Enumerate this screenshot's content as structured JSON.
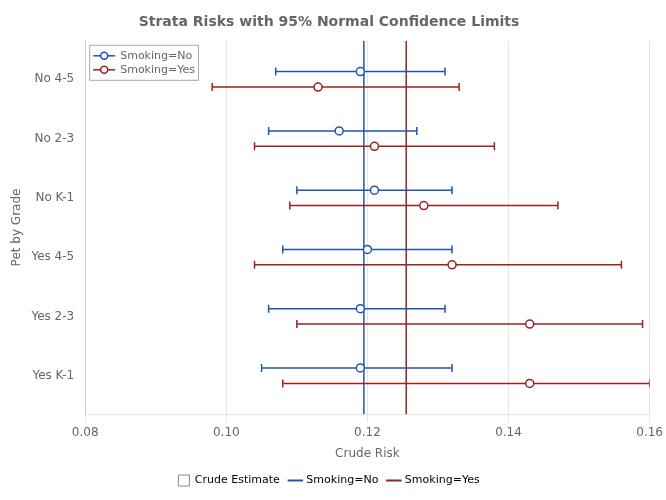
{
  "chart_data": {
    "type": "errorbar",
    "orientation": "horizontal",
    "title": "Strata Risks with 95% Normal Confidence Limits",
    "xlabel": "Crude Risk",
    "ylabel": "Pet by Grade",
    "categories": [
      "No 4-5",
      "No 2-3",
      "No K-1",
      "Yes 4-5",
      "Yes 2-3",
      "Yes K-1"
    ],
    "series": [
      {
        "name": "Smoking=No",
        "color": "#2255aa",
        "marker": "circle",
        "values": [
          0.119,
          0.116,
          0.121,
          0.12,
          0.119,
          0.119
        ],
        "lower": [
          0.107,
          0.106,
          0.11,
          0.108,
          0.106,
          0.105
        ],
        "upper": [
          0.131,
          0.127,
          0.132,
          0.132,
          0.131,
          0.132
        ]
      },
      {
        "name": "Smoking=Yes",
        "color": "#992222",
        "marker": "circle",
        "values": [
          0.113,
          0.121,
          0.128,
          0.132,
          0.143,
          0.143
        ],
        "lower": [
          0.098,
          0.104,
          0.109,
          0.104,
          0.11,
          0.108
        ],
        "upper": [
          0.133,
          0.138,
          0.147,
          0.156,
          0.159,
          0.16
        ]
      }
    ],
    "reference_lines": {
      "name": "Crude Estimate",
      "lines": [
        {
          "name": "Smoking=No",
          "value": 0.1195,
          "color": "#2255aa"
        },
        {
          "name": "Smoking=Yes",
          "value": 0.1255,
          "color": "#992222"
        }
      ]
    },
    "xlim": [
      0.08,
      0.16
    ],
    "xticks": [
      0.08,
      {
        "value": 0.1,
        "label": "0.10"
      },
      0.12,
      0.14,
      0.16
    ],
    "grid": "x",
    "legend": "upper left"
  }
}
